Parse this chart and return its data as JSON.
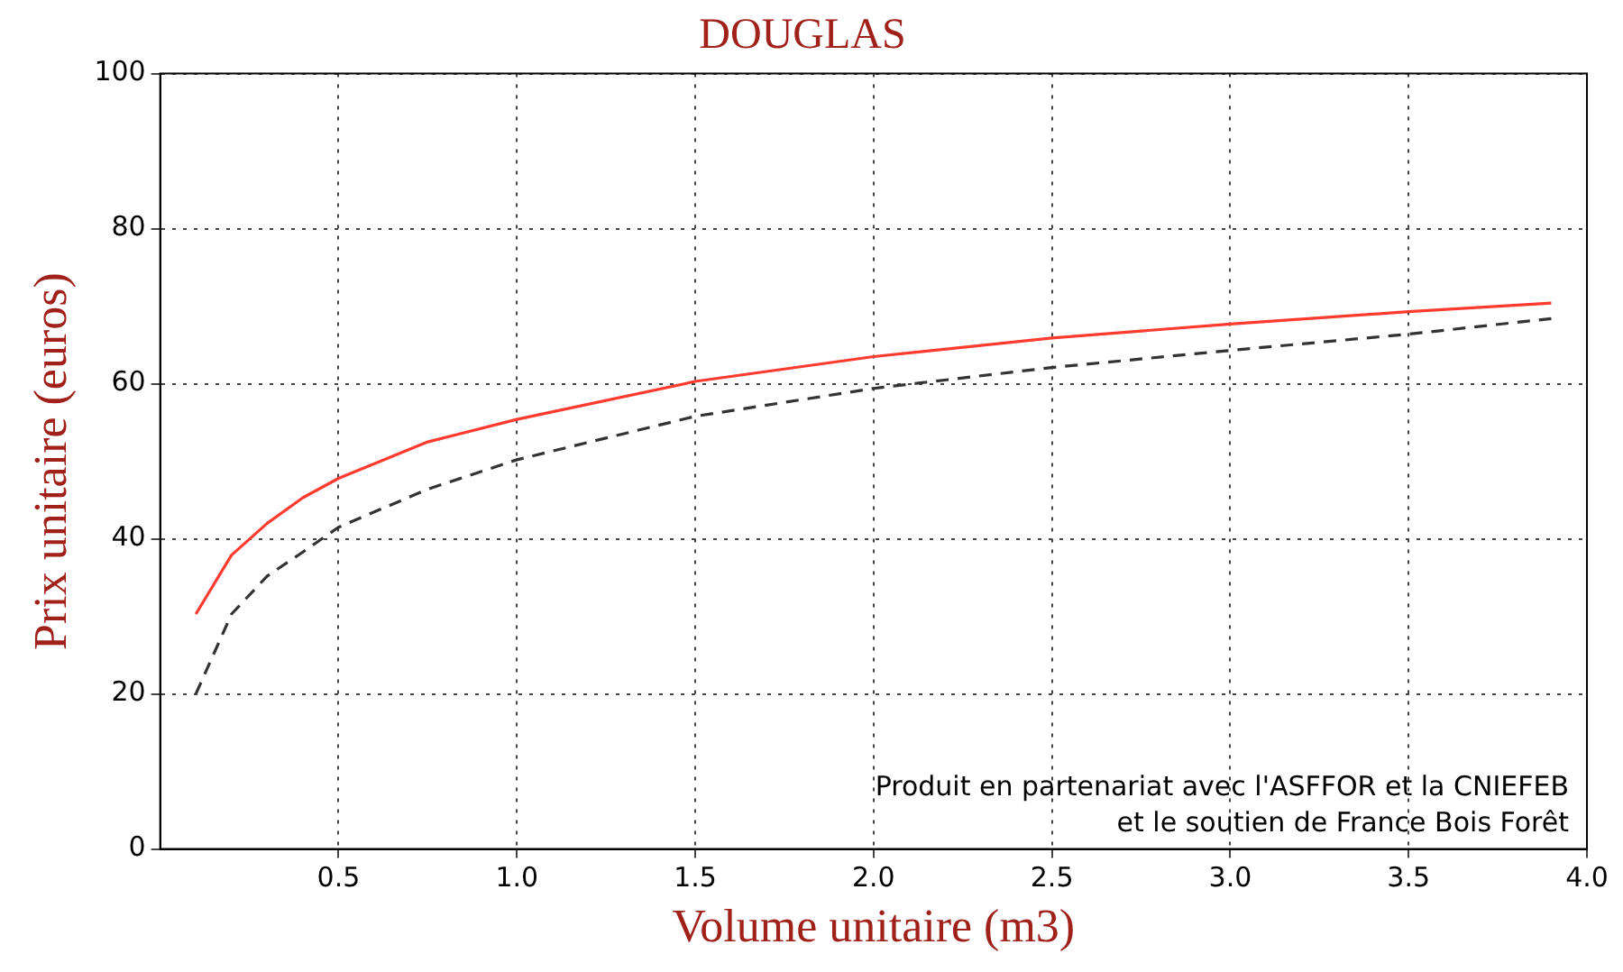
{
  "chart_data": {
    "type": "line",
    "title": "DOUGLAS",
    "xlabel": "Volume unitaire (m3)",
    "ylabel": "Prix unitaire (euros)",
    "x": [
      0.1,
      0.2,
      0.3,
      0.4,
      0.5,
      0.75,
      1.0,
      1.5,
      2.0,
      2.5,
      3.0,
      3.5,
      3.9
    ],
    "series": [
      {
        "color": "#ff3b2f",
        "line_style": "solid",
        "values": [
          30.3,
          37.9,
          42,
          45.3,
          47.8,
          52.5,
          55.4,
          60.3,
          63.5,
          65.9,
          67.7,
          69.3,
          70.4
        ]
      },
      {
        "color": "#333333",
        "line_style": "dashed",
        "values": [
          20,
          30.3,
          35.2,
          38.3,
          41.5,
          46.4,
          50.2,
          55.8,
          59.4,
          62.1,
          64.3,
          66.4,
          68.4
        ]
      }
    ],
    "xlim": [
      0,
      4
    ],
    "xticks": [
      {
        "value": 0.5,
        "label": "0.5"
      },
      {
        "value": 1,
        "label": "1.0"
      },
      {
        "value": 1.5,
        "label": "1.5"
      },
      {
        "value": 2,
        "label": "2.0"
      },
      {
        "value": 2.5,
        "label": "2.5"
      },
      {
        "value": 3,
        "label": "3.0"
      },
      {
        "value": 3.5,
        "label": "3.5"
      },
      {
        "value": 4,
        "label": "4.0"
      }
    ],
    "ylim": [
      0,
      100
    ],
    "yticks": [
      0,
      20,
      40,
      60,
      80,
      100
    ],
    "grid": true,
    "legend": false,
    "marker": "none",
    "annotations": [
      "Produit en partenariat avec l'ASFFOR et la CNIEFEB",
      "et le soutien de France Bois Forêt"
    ]
  }
}
